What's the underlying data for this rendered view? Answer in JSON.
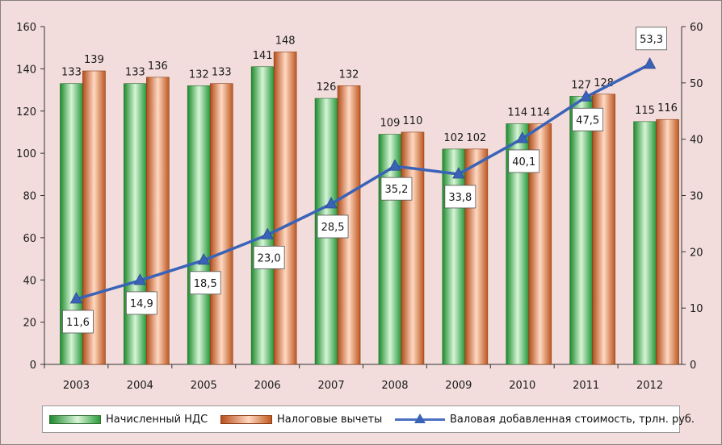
{
  "chart_data": {
    "type": "bar",
    "categories": [
      "2003",
      "2004",
      "2005",
      "2006",
      "2007",
      "2008",
      "2009",
      "2010",
      "2011",
      "2012"
    ],
    "series": [
      {
        "name": "Начисленный НДС",
        "axis": "left",
        "values": [
          133,
          133,
          132,
          141,
          126,
          109,
          102,
          114,
          127,
          115
        ],
        "labels": [
          "133",
          "133",
          "132",
          "141",
          "126",
          "109",
          "102",
          "114",
          "127",
          "115"
        ],
        "color": "#2e9a3e"
      },
      {
        "name": "Налоговые вычеты",
        "axis": "left",
        "values": [
          139,
          136,
          133,
          148,
          132,
          110,
          102,
          114,
          128,
          116
        ],
        "labels": [
          "139",
          "136",
          "133",
          "148",
          "132",
          "110",
          "102",
          "114",
          "128",
          "116"
        ],
        "color": "#c0581e"
      },
      {
        "name": "Валовая добавленная стоимость, трлн. руб.",
        "type": "line",
        "axis": "right",
        "values": [
          11.6,
          14.9,
          18.5,
          23.0,
          28.5,
          35.2,
          33.8,
          40.1,
          47.5,
          53.3
        ],
        "labels": [
          "11,6",
          "14,9",
          "18,5",
          "23,0",
          "28,5",
          "35,2",
          "33,8",
          "40,1",
          "47,5",
          "53,3"
        ],
        "color": "#3a63b8"
      }
    ],
    "y_left": {
      "min": 0,
      "max": 160,
      "ticks": [
        "0",
        "20",
        "40",
        "60",
        "80",
        "100",
        "120",
        "140",
        "160"
      ]
    },
    "y_right": {
      "min": 0,
      "max": 60,
      "ticks": [
        "0",
        "10",
        "20",
        "30",
        "40",
        "50",
        "60"
      ]
    },
    "grid": false,
    "legend_position": "bottom"
  },
  "background_color": "#f2dcdc"
}
